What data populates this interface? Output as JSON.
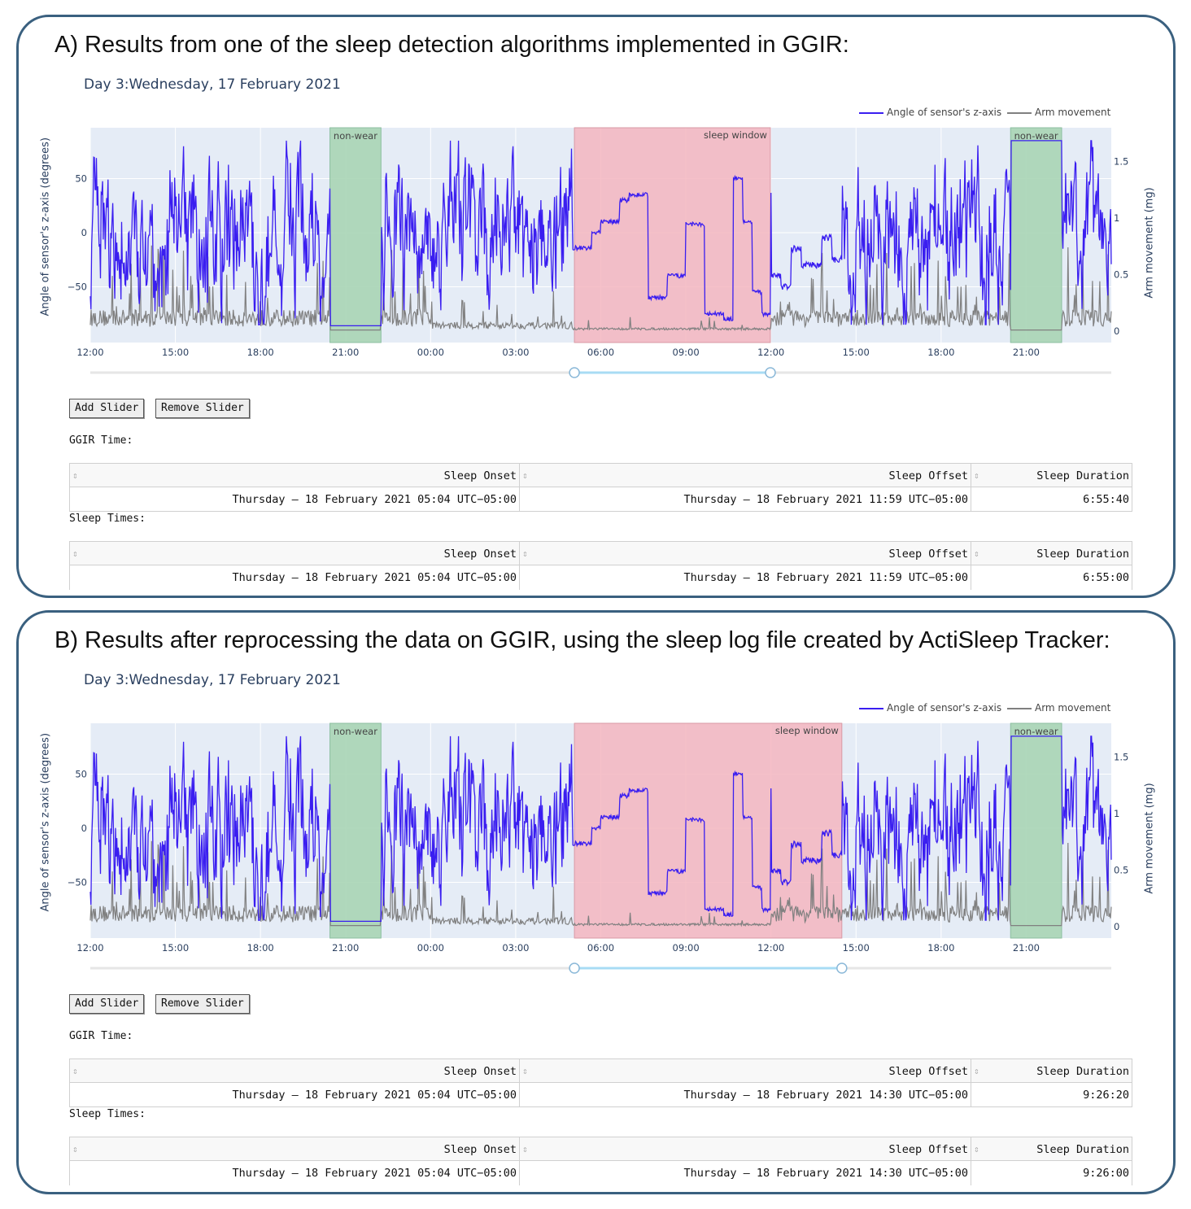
{
  "panels": [
    {
      "heading": "A) Results from one of the sleep detection algorithms implemented in GGIR:",
      "day_title": "Day 3:Wednesday, 17 February 2021",
      "legend": {
        "angle": "Angle of sensor's z-axis",
        "arm": "Arm movement"
      },
      "yaxis_left_title": "Angle of sensor's z-axis (degrees)",
      "yaxis_right_title": "Arm movement (mg)",
      "left_ticks": [
        "50",
        "0",
        "−50"
      ],
      "right_ticks": [
        "1.5",
        "1",
        "0.5",
        "0"
      ],
      "x_ticks": [
        "12:00",
        "15:00",
        "18:00",
        "21:00",
        "00:00",
        "03:00",
        "06:00",
        "09:00",
        "12:00",
        "15:00",
        "18:00",
        "21:00"
      ],
      "shade_labels": {
        "nonwear": "non-wear",
        "sleep": "sleep window"
      },
      "sleep_window_hours": [
        17.07,
        23.98
      ],
      "buttons": {
        "add": "Add Slider",
        "remove": "Remove Slider"
      },
      "ggir_label": "GGIR Time:",
      "sleep_label": "Sleep Times:",
      "columns": [
        "Sleep Onset",
        "Sleep Offset",
        "Sleep Duration"
      ],
      "ggir_row": [
        "Thursday – 18 February 2021 05:04 UTC−05:00",
        "Thursday – 18 February 2021 11:59 UTC−05:00",
        "6:55:40"
      ],
      "sleep_row": [
        "Thursday – 18 February 2021 05:04 UTC−05:00",
        "Thursday – 18 February 2021 11:59 UTC−05:00",
        "6:55:00"
      ]
    },
    {
      "heading": "B) Results after reprocessing the data on GGIR, using the sleep log file created by ActiSleep Tracker:",
      "day_title": "Day 3:Wednesday, 17 February 2021",
      "legend": {
        "angle": "Angle of sensor's z-axis",
        "arm": "Arm movement"
      },
      "yaxis_left_title": "Angle of sensor's z-axis (degrees)",
      "yaxis_right_title": "Arm movement (mg)",
      "left_ticks": [
        "50",
        "0",
        "−50"
      ],
      "right_ticks": [
        "1.5",
        "1",
        "0.5",
        "0"
      ],
      "x_ticks": [
        "12:00",
        "15:00",
        "18:00",
        "21:00",
        "00:00",
        "03:00",
        "06:00",
        "09:00",
        "12:00",
        "15:00",
        "18:00",
        "21:00"
      ],
      "shade_labels": {
        "nonwear": "non-wear",
        "sleep": "sleep window"
      },
      "sleep_window_hours": [
        17.07,
        26.5
      ],
      "buttons": {
        "add": "Add Slider",
        "remove": "Remove Slider"
      },
      "ggir_label": "GGIR Time:",
      "sleep_label": "Sleep Times:",
      "columns": [
        "Sleep Onset",
        "Sleep Offset",
        "Sleep Duration"
      ],
      "ggir_row": [
        "Thursday – 18 February 2021 05:04 UTC−05:00",
        "Thursday – 18 February 2021 14:30 UTC−05:00",
        "9:26:20"
      ],
      "sleep_row": [
        "Thursday – 18 February 2021 05:04 UTC−05:00",
        "Thursday – 18 February 2021 14:30 UTC−05:00",
        "9:26:00"
      ]
    }
  ],
  "nonwear_hours": [
    [
      8.45,
      10.25
    ],
    [
      32.45,
      34.25
    ]
  ],
  "colors": {
    "angle": "#3a1ef0",
    "arm": "#808080",
    "nonwear": "#a8d5b5",
    "sleep": "#f4b6c0",
    "plot_bg": "#e5ecf6",
    "slider": "#a8dcf4",
    "border": "#3a607f"
  }
}
